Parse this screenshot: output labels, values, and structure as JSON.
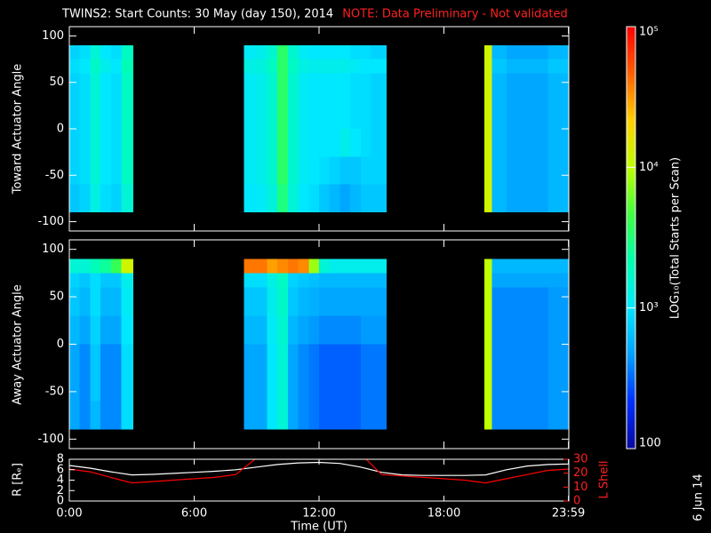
{
  "title": "TWINS2: Start Counts: 30 May (day 150), 2014",
  "note": "NOTE: Data Preliminary - Not validated",
  "stamp": "6 Jun 14",
  "colorbar": {
    "label": "LOG₁₀(Total Starts per Scan)",
    "lim": [
      100,
      100000
    ],
    "log_scale": true,
    "ticks": [
      {
        "value": 100000,
        "label": "10⁵"
      },
      {
        "value": 10000,
        "label": "10⁴"
      },
      {
        "value": 1000,
        "label": "10³"
      },
      100
    ],
    "colors": [
      "#0808a0",
      "#0030ff",
      "#00a0ff",
      "#00e8ff",
      "#00ffb0",
      "#40ff40",
      "#c0ff00",
      "#ffd000",
      "#ff6000",
      "#ff0000"
    ]
  },
  "chart_data": [
    {
      "type": "heatmap",
      "ylabel": "Toward Actuator Angle",
      "xlim": [
        0,
        24
      ],
      "ylim": [
        -110,
        110
      ],
      "yticks": [
        -100,
        -50,
        0,
        50,
        100
      ],
      "xbins": [
        0,
        0.5,
        1,
        1.5,
        2,
        2.5,
        3.08,
        8.4,
        9,
        9.5,
        10,
        10.5,
        11,
        11.5,
        12,
        12.5,
        13,
        13.5,
        14,
        14.5,
        15.25,
        19.95,
        20.3,
        21,
        22,
        23,
        24
      ],
      "ybins": [
        -90,
        -60,
        -30,
        0,
        30,
        60,
        75,
        90
      ],
      "values": [
        [
          700,
          800,
          800,
          800,
          800,
          900,
          800
        ],
        [
          800,
          900,
          900,
          900,
          900,
          1000,
          900
        ],
        [
          1300,
          1500,
          1500,
          1500,
          1500,
          1700,
          1500
        ],
        [
          900,
          1000,
          1000,
          1000,
          1000,
          1200,
          1000
        ],
        [
          800,
          900,
          900,
          900,
          900,
          1000,
          900
        ],
        [
          1500,
          1800,
          1800,
          1800,
          1800,
          2000,
          1800
        ],
        null,
        [
          1000,
          1100,
          1100,
          1100,
          1100,
          1300,
          1100
        ],
        [
          1100,
          1200,
          1200,
          1200,
          1200,
          1400,
          1200
        ],
        [
          1400,
          1600,
          1600,
          1600,
          1600,
          1800,
          1600
        ],
        [
          3000,
          3500,
          3500,
          3500,
          3500,
          3500,
          3500
        ],
        [
          1500,
          1600,
          1600,
          1600,
          1600,
          1800,
          1600
        ],
        [
          1000,
          1100,
          1100,
          1100,
          1100,
          1300,
          1100
        ],
        [
          900,
          1000,
          1000,
          1000,
          1000,
          1200,
          1000
        ],
        [
          700,
          900,
          1000,
          1000,
          1000,
          1200,
          1000
        ],
        [
          600,
          800,
          1000,
          1000,
          1000,
          1200,
          1000
        ],
        [
          500,
          700,
          1200,
          1000,
          1000,
          1200,
          1000
        ],
        [
          600,
          700,
          1000,
          900,
          900,
          1100,
          900
        ],
        [
          700,
          800,
          900,
          900,
          900,
          1000,
          900
        ],
        [
          700,
          800,
          800,
          800,
          800,
          1000,
          800
        ],
        null,
        [
          12000,
          12000,
          12000,
          12000,
          12000,
          12000,
          12000
        ],
        [
          600,
          600,
          600,
          600,
          600,
          700,
          600
        ],
        [
          500,
          500,
          500,
          500,
          500,
          600,
          500
        ],
        [
          500,
          500,
          500,
          500,
          500,
          600,
          500
        ],
        [
          600,
          600,
          600,
          600,
          600,
          700,
          600
        ]
      ]
    },
    {
      "type": "heatmap",
      "ylabel": "Away Actuator Angle",
      "xlim": [
        0,
        24
      ],
      "ylim": [
        -110,
        110
      ],
      "yticks": [
        -100,
        -50,
        0,
        50,
        100
      ],
      "xbins": [
        0,
        0.5,
        1,
        1.5,
        2,
        2.5,
        3.08,
        8.4,
        9,
        9.5,
        10,
        10.5,
        11,
        11.5,
        12,
        12.5,
        13,
        13.5,
        14,
        14.5,
        15.25,
        19.95,
        20.3,
        21,
        22,
        23,
        24
      ],
      "ybins": [
        -90,
        -60,
        -30,
        0,
        30,
        60,
        75,
        90
      ],
      "values": [
        [
          500,
          500,
          500,
          600,
          700,
          800,
          1500
        ],
        [
          400,
          400,
          400,
          500,
          600,
          700,
          1500
        ],
        [
          600,
          700,
          700,
          800,
          900,
          900,
          2000
        ],
        [
          400,
          400,
          400,
          500,
          600,
          700,
          2500
        ],
        [
          400,
          400,
          400,
          500,
          600,
          700,
          4000
        ],
        [
          900,
          900,
          900,
          1000,
          1100,
          1200,
          12000
        ],
        null,
        [
          500,
          500,
          500,
          600,
          700,
          900,
          40000
        ],
        [
          500,
          500,
          500,
          600,
          700,
          900,
          40000
        ],
        [
          1000,
          1000,
          1000,
          1100,
          1200,
          1300,
          30000
        ],
        [
          1500,
          1500,
          1500,
          1600,
          1700,
          1800,
          35000
        ],
        [
          500,
          500,
          500,
          600,
          700,
          800,
          40000
        ],
        [
          400,
          400,
          400,
          500,
          600,
          700,
          35000
        ],
        [
          350,
          350,
          350,
          450,
          550,
          650,
          8000
        ],
        [
          300,
          300,
          300,
          400,
          500,
          600,
          1500
        ],
        [
          300,
          300,
          300,
          400,
          500,
          600,
          1200
        ],
        [
          300,
          300,
          300,
          400,
          500,
          600,
          1200
        ],
        [
          300,
          300,
          300,
          400,
          500,
          600,
          1200
        ],
        [
          350,
          350,
          350,
          450,
          500,
          600,
          1200
        ],
        [
          350,
          350,
          350,
          450,
          500,
          600,
          1200
        ],
        null,
        [
          10000,
          10000,
          10000,
          10000,
          10000,
          10000,
          10000
        ],
        [
          400,
          400,
          400,
          400,
          400,
          500,
          600
        ],
        [
          400,
          400,
          400,
          400,
          400,
          500,
          600
        ],
        [
          400,
          400,
          400,
          400,
          400,
          500,
          600
        ],
        [
          450,
          450,
          450,
          450,
          450,
          500,
          600
        ]
      ]
    },
    {
      "type": "line",
      "ylabel": "R [Rₑ]",
      "y2label": "L Shell",
      "xlabel": "Time (UT)",
      "xlim": [
        0,
        24
      ],
      "xticks": [
        {
          "value": 0,
          "label": "0:00"
        },
        {
          "value": 6,
          "label": "6:00"
        },
        {
          "value": 12,
          "label": "12:00"
        },
        {
          "value": 18,
          "label": "18:00"
        },
        {
          "value": 23.983,
          "label": "23:59"
        }
      ],
      "ylim": [
        0,
        8
      ],
      "yticks": [
        0,
        2,
        4,
        6,
        8
      ],
      "y2lim": [
        0,
        30
      ],
      "y2ticks": [
        0,
        10,
        20,
        30
      ],
      "x": [
        0,
        1,
        2,
        3,
        4,
        5,
        6,
        7,
        8,
        9,
        10,
        11,
        12,
        13,
        14,
        15,
        16,
        17,
        18,
        19,
        20,
        21,
        22,
        23,
        24
      ],
      "series": [
        {
          "color": "#ffffff",
          "values": [
            6.8,
            6.3,
            5.6,
            5.0,
            5.1,
            5.3,
            5.5,
            5.7,
            6.0,
            6.5,
            7.0,
            7.3,
            7.4,
            7.2,
            6.5,
            5.5,
            5.0,
            4.9,
            4.9,
            4.9,
            5.0,
            6.0,
            6.7,
            7.0,
            7.1
          ]
        },
        {
          "color": "#ff0000",
          "axis": "y2",
          "values": [
            23,
            21,
            17,
            13,
            14,
            15,
            16,
            17,
            19,
            31,
            null,
            null,
            null,
            null,
            34,
            19,
            18,
            17,
            16,
            15,
            13,
            16,
            19,
            22,
            23
          ]
        }
      ]
    }
  ]
}
